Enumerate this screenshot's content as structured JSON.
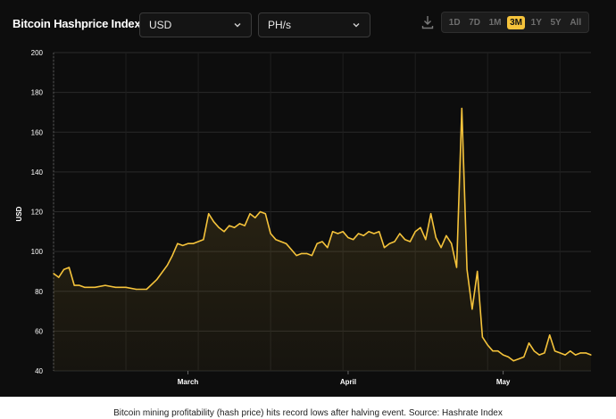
{
  "header": {
    "title": "Bitcoin Hashprice Index",
    "currency": {
      "selected": "USD"
    },
    "unit": {
      "selected": "PH/s"
    },
    "download_icon": "download-icon",
    "ranges": [
      {
        "label": "1D",
        "active": false
      },
      {
        "label": "7D",
        "active": false
      },
      {
        "label": "1M",
        "active": false
      },
      {
        "label": "3M",
        "active": true
      },
      {
        "label": "1Y",
        "active": false
      },
      {
        "label": "5Y",
        "active": false
      },
      {
        "label": "All",
        "active": false
      }
    ],
    "accent_color": "#f5c33b"
  },
  "chart_data": {
    "type": "area",
    "ylabel": "USD",
    "xlabel": "",
    "ylim": [
      40,
      200
    ],
    "yticks": [
      40,
      60,
      80,
      100,
      120,
      140,
      160,
      180,
      200
    ],
    "xlim": [
      "2024-02-04",
      "2024-05-18"
    ],
    "xticks": [
      {
        "date": "2024-03-01",
        "label": "March"
      },
      {
        "date": "2024-04-01",
        "label": "April"
      },
      {
        "date": "2024-05-01",
        "label": "May"
      }
    ],
    "line_color": "#f5c33b",
    "grid": true,
    "series": [
      {
        "x": [
          "2024-02-04",
          "2024-02-05",
          "2024-02-06",
          "2024-02-07",
          "2024-02-08",
          "2024-02-09",
          "2024-02-10",
          "2024-02-12",
          "2024-02-14",
          "2024-02-16",
          "2024-02-18",
          "2024-02-20",
          "2024-02-22",
          "2024-02-24",
          "2024-02-26",
          "2024-02-27",
          "2024-02-28",
          "2024-02-29",
          "2024-03-01",
          "2024-03-02",
          "2024-03-04",
          "2024-03-05",
          "2024-03-06",
          "2024-03-07",
          "2024-03-08",
          "2024-03-09",
          "2024-03-10",
          "2024-03-11",
          "2024-03-12",
          "2024-03-13",
          "2024-03-14",
          "2024-03-15",
          "2024-03-16",
          "2024-03-17",
          "2024-03-18",
          "2024-03-19",
          "2024-03-20",
          "2024-03-21",
          "2024-03-22",
          "2024-03-23",
          "2024-03-24",
          "2024-03-25",
          "2024-03-26",
          "2024-03-27",
          "2024-03-28",
          "2024-03-29",
          "2024-03-30",
          "2024-03-31",
          "2024-04-01",
          "2024-04-02",
          "2024-04-03",
          "2024-04-04",
          "2024-04-05",
          "2024-04-06",
          "2024-04-07",
          "2024-04-08",
          "2024-04-09",
          "2024-04-10",
          "2024-04-11",
          "2024-04-12",
          "2024-04-13",
          "2024-04-14",
          "2024-04-15",
          "2024-04-16",
          "2024-04-17",
          "2024-04-18",
          "2024-04-19",
          "2024-04-20",
          "2024-04-21",
          "2024-04-22",
          "2024-04-23",
          "2024-04-24",
          "2024-04-25",
          "2024-04-26",
          "2024-04-27",
          "2024-04-28",
          "2024-04-29",
          "2024-04-30",
          "2024-05-01",
          "2024-05-02",
          "2024-05-03",
          "2024-05-04",
          "2024-05-05",
          "2024-05-06",
          "2024-05-07",
          "2024-05-08",
          "2024-05-09",
          "2024-05-10",
          "2024-05-11",
          "2024-05-12",
          "2024-05-13",
          "2024-05-14",
          "2024-05-15",
          "2024-05-16",
          "2024-05-17",
          "2024-05-18"
        ],
        "y": [
          89,
          87,
          91,
          92,
          83,
          83,
          82,
          82,
          83,
          82,
          82,
          81,
          81,
          86,
          93,
          98,
          104,
          103,
          104,
          104,
          106,
          119,
          115,
          112,
          110,
          113,
          112,
          114,
          113,
          119,
          117,
          120,
          119,
          109,
          106,
          105,
          104,
          101,
          98,
          99,
          99,
          98,
          104,
          105,
          102,
          110,
          109,
          110,
          107,
          106,
          109,
          108,
          110,
          109,
          110,
          102,
          104,
          105,
          109,
          106,
          105,
          110,
          112,
          106,
          119,
          107,
          102,
          108,
          104,
          92,
          172,
          91,
          71,
          90,
          57,
          53,
          50,
          50,
          48,
          47,
          45,
          46,
          47,
          54,
          50,
          48,
          49,
          58,
          50,
          49,
          48,
          50,
          48,
          49,
          49,
          48
        ]
      }
    ],
    "caption": "Bitcoin mining profitability (hash price) hits record lows after halving event. Source: Hashrate Index"
  }
}
